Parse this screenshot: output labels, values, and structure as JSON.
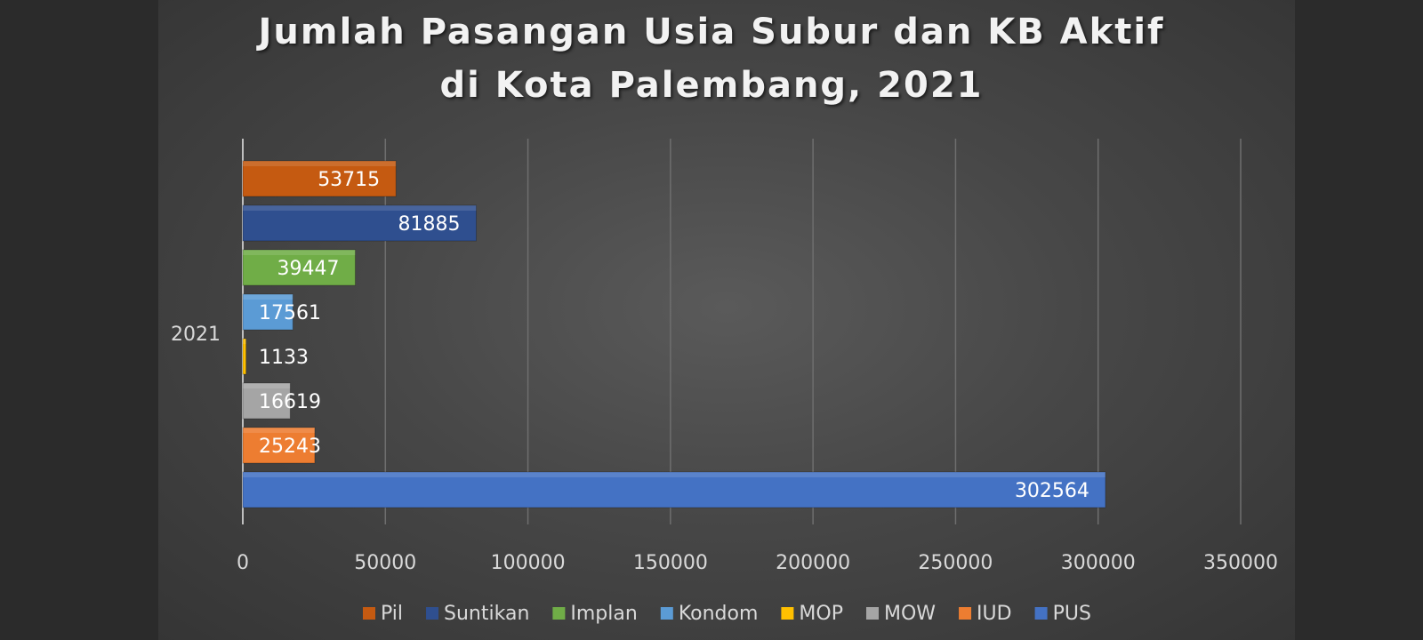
{
  "chart_data": {
    "type": "bar",
    "orientation": "horizontal",
    "title": "Jumlah Pasangan Usia Subur dan KB Aktif",
    "subtitle": "di Kota Palembang, 2021",
    "categories": [
      "2021"
    ],
    "series": [
      {
        "name": "Pil",
        "values": [
          53715
        ],
        "color": "#c55a11"
      },
      {
        "name": "Suntikan",
        "values": [
          81885
        ],
        "color": "#2f4f8f"
      },
      {
        "name": "Implan",
        "values": [
          39447
        ],
        "color": "#70ad47"
      },
      {
        "name": "Kondom",
        "values": [
          17561
        ],
        "color": "#5b9bd5"
      },
      {
        "name": "MOP",
        "values": [
          1133
        ],
        "color": "#ffc000"
      },
      {
        "name": "MOW",
        "values": [
          16619
        ],
        "color": "#a5a5a5"
      },
      {
        "name": "IUD",
        "values": [
          25243
        ],
        "color": "#ed7d31"
      },
      {
        "name": "PUS",
        "values": [
          302564
        ],
        "color": "#4472c4"
      }
    ],
    "xticks": [
      0,
      50000,
      100000,
      150000,
      200000,
      250000,
      300000,
      350000
    ],
    "xlim": [
      0,
      350000
    ],
    "grid": true,
    "legend": "bottom",
    "data_labels": true
  }
}
